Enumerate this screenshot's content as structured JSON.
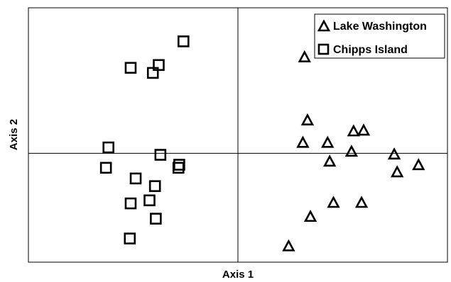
{
  "chart_data": {
    "type": "scatter",
    "xlabel": "Axis 1",
    "ylabel": "Axis 2",
    "xlim": [
      0,
      10
    ],
    "ylim": [
      0,
      10
    ],
    "grid": false,
    "reference_lines": {
      "x": 5,
      "y": 4.28
    },
    "legend": {
      "placement": "top-right"
    },
    "series": [
      {
        "name": "Lake Washington",
        "marker": "triangle",
        "color": "#000000",
        "points": [
          {
            "x": 6.59,
            "y": 8.06
          },
          {
            "x": 6.66,
            "y": 5.58
          },
          {
            "x": 6.55,
            "y": 4.7
          },
          {
            "x": 7.14,
            "y": 4.7
          },
          {
            "x": 7.76,
            "y": 5.15
          },
          {
            "x": 8.0,
            "y": 5.18
          },
          {
            "x": 7.71,
            "y": 4.35
          },
          {
            "x": 7.19,
            "y": 3.96
          },
          {
            "x": 8.73,
            "y": 4.24
          },
          {
            "x": 9.31,
            "y": 3.82
          },
          {
            "x": 8.8,
            "y": 3.54
          },
          {
            "x": 7.28,
            "y": 2.34
          },
          {
            "x": 7.95,
            "y": 2.34
          },
          {
            "x": 6.73,
            "y": 1.79
          },
          {
            "x": 6.21,
            "y": 0.63
          }
        ]
      },
      {
        "name": "Chipps Island",
        "marker": "square",
        "color": "#000000",
        "points": [
          {
            "x": 3.7,
            "y": 8.68
          },
          {
            "x": 2.44,
            "y": 7.64
          },
          {
            "x": 3.11,
            "y": 7.75
          },
          {
            "x": 2.97,
            "y": 7.44
          },
          {
            "x": 1.91,
            "y": 4.51
          },
          {
            "x": 1.85,
            "y": 3.71
          },
          {
            "x": 3.15,
            "y": 4.22
          },
          {
            "x": 3.6,
            "y": 3.83
          },
          {
            "x": 3.58,
            "y": 3.71
          },
          {
            "x": 2.56,
            "y": 3.29
          },
          {
            "x": 3.02,
            "y": 2.99
          },
          {
            "x": 2.44,
            "y": 2.31
          },
          {
            "x": 2.89,
            "y": 2.43
          },
          {
            "x": 3.04,
            "y": 1.71
          },
          {
            "x": 2.42,
            "y": 0.93
          }
        ]
      }
    ]
  }
}
